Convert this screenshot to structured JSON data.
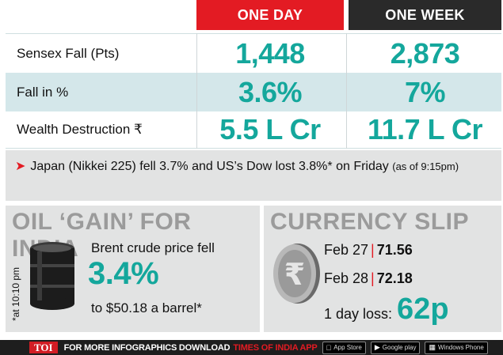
{
  "header": {
    "col1": "ONE DAY",
    "col2": "ONE WEEK"
  },
  "rows": [
    {
      "label": "Sensex Fall (Pts)",
      "day": "1,448",
      "week": "2,873"
    },
    {
      "label": "Fall in %",
      "day": "3.6%",
      "week": "7%"
    },
    {
      "label": "Wealth Destruction ₹",
      "day": "5.5 L Cr",
      "week": "11.7 L Cr"
    }
  ],
  "news": {
    "text": "Japan (Nikkei 225) fell 3.7% and US’s Dow lost 3.8%* on Friday",
    "note": "(as of 9:15pm)"
  },
  "oil": {
    "title": "OIL ‘GAIN’ FOR INDIA",
    "time_note": "*at 10:10 pm",
    "line1": "Brent crude price fell",
    "big": "3.4%",
    "line2": "to $50.18 a barrel*"
  },
  "currency": {
    "title": "CURRENCY SLIP",
    "entries": [
      {
        "date": "Feb 27",
        "value": "71.56"
      },
      {
        "date": "Feb 28",
        "value": "72.18"
      }
    ],
    "loss_label": "1 day loss:",
    "loss_value": "62p"
  },
  "footer": {
    "brand": "TOI",
    "text": "FOR MORE  INFOGRAPHICS DOWNLOAD",
    "app": "TIMES OF INDIA APP",
    "badge1": "App Store",
    "badge2": "Google play",
    "badge3": "Windows Phone"
  },
  "colors": {
    "accent_red": "#e31b23",
    "value_teal": "#14a79c",
    "header_dark": "#2a2a2a"
  }
}
